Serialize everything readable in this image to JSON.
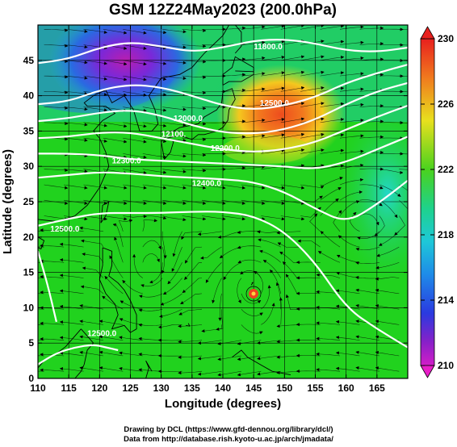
{
  "title": "GSM 12Z24May2023 (200.0hPa)",
  "x_axis": {
    "label": "Longitude (degrees)",
    "ticks": [
      "110",
      "115",
      "120",
      "125",
      "130",
      "135",
      "140",
      "145",
      "150",
      "155",
      "160",
      "165"
    ]
  },
  "y_axis": {
    "label": "Latitude  (degrees)",
    "ticks": [
      "0",
      "5",
      "10",
      "15",
      "20",
      "25",
      "30",
      "35",
      "40",
      "45"
    ]
  },
  "colorbar": {
    "ticks": [
      "230",
      "226",
      "222",
      "218",
      "214",
      "210"
    ]
  },
  "contour_labels": [
    "11800.0",
    "12000.0",
    "12100.",
    "12200.0",
    "12300.0",
    "12400.0",
    "12500.0",
    "12500.0",
    "12500.0"
  ],
  "credits": {
    "line1": "Drawing by DCL (https://www.gfd-dennou.org/library/dcl/)",
    "line2": "Data from http://database.rish.kyoto-u.ac.jp/arch/jmadata/"
  },
  "colors": {
    "background_field": "#21d21e",
    "cold_low": "#a020c8",
    "warm_high": "#f05020",
    "contour": "#ffffff"
  },
  "chart_data": {
    "type": "heatmap",
    "title": "GSM 12Z24May2023 (200.0hPa)",
    "xlabel": "Longitude (degrees)",
    "ylabel": "Latitude  (degrees)",
    "xlim": [
      110,
      170
    ],
    "ylim": [
      0,
      50
    ],
    "colorbar_range": [
      210,
      230
    ],
    "colorbar_ticks": [
      210,
      214,
      218,
      222,
      226,
      230
    ],
    "contours": [
      {
        "label": "11800.0",
        "lon": [
          110,
          115,
          120,
          125,
          130,
          135,
          140,
          145,
          150,
          155,
          160,
          165,
          170
        ],
        "lat": [
          44.6,
          45.2,
          46.8,
          47.6,
          47.0,
          46.2,
          46.8,
          47.8,
          48.0,
          47.4,
          46.4,
          46.2,
          46.8
        ]
      },
      {
        "label": "12000.0",
        "lon": [
          110,
          115,
          120,
          125,
          130,
          135,
          140,
          145,
          150,
          155,
          160,
          165,
          170
        ],
        "lat": [
          38.8,
          39.2,
          40.8,
          41.6,
          41.2,
          40.0,
          38.6,
          38.0,
          38.6,
          39.8,
          41.8,
          43.2,
          44.4
        ]
      },
      {
        "label": "12100.",
        "lon": [
          110,
          115,
          120,
          125,
          130,
          135,
          140,
          145,
          150,
          155,
          160,
          165,
          170
        ],
        "lat": [
          36.4,
          36.8,
          37.6,
          38.0,
          37.2,
          35.8,
          34.8,
          34.6,
          35.2,
          36.6,
          38.8,
          40.6,
          41.8
        ]
      },
      {
        "label": "12200.0",
        "lon": [
          110,
          115,
          120,
          125,
          130,
          135,
          140,
          145,
          150,
          155,
          160,
          165,
          170
        ],
        "lat": [
          34.0,
          34.2,
          34.8,
          34.8,
          34.0,
          33.2,
          32.4,
          32.0,
          32.4,
          33.4,
          35.2,
          37.0,
          38.6
        ]
      },
      {
        "label": "12300.0",
        "lon": [
          110,
          115,
          120,
          125,
          130,
          135,
          140,
          145,
          150,
          155,
          160,
          165,
          170
        ],
        "lat": [
          31.8,
          31.8,
          31.6,
          31.0,
          30.8,
          30.6,
          30.4,
          30.2,
          30.0,
          29.6,
          30.6,
          32.4,
          34.2
        ]
      },
      {
        "label": "12400.0",
        "lon": [
          110,
          115,
          120,
          125,
          130,
          135,
          140,
          145,
          150,
          155,
          160,
          165,
          170
        ],
        "lat": [
          28.4,
          28.8,
          29.2,
          29.0,
          28.6,
          28.4,
          28.2,
          27.8,
          26.4,
          24.0,
          22.0,
          24.6,
          28.0
        ]
      },
      {
        "label": "12500.0",
        "lon": [
          110,
          115,
          120,
          125,
          130,
          135,
          140,
          145,
          150,
          155,
          160,
          165,
          170
        ],
        "lat": [
          21.6,
          22.6,
          23.4,
          23.4,
          23.4,
          23.6,
          23.6,
          23.0,
          20.8,
          16.4,
          10.0,
          7.0,
          4.4
        ]
      },
      {
        "label": "12500.0",
        "lon": [
          110,
          113,
          116,
          119,
          121,
          123
        ],
        "lat": [
          2.0,
          3.6,
          4.4,
          4.8,
          4.4,
          4.0
        ]
      },
      {
        "label": "12500.0",
        "lon": [
          110,
          111.5,
          113
        ],
        "lat": [
          18.0,
          13.5,
          8.0
        ]
      }
    ],
    "features": [
      {
        "name": "cold-low",
        "lon": 125,
        "lat": 46,
        "value_range": [
          210,
          214
        ]
      },
      {
        "name": "warm-high",
        "lon": 150,
        "lat": 38,
        "value_range": [
          226,
          230
        ]
      },
      {
        "name": "typhoon-center",
        "lon": 144.5,
        "lat": 13.5
      }
    ]
  }
}
